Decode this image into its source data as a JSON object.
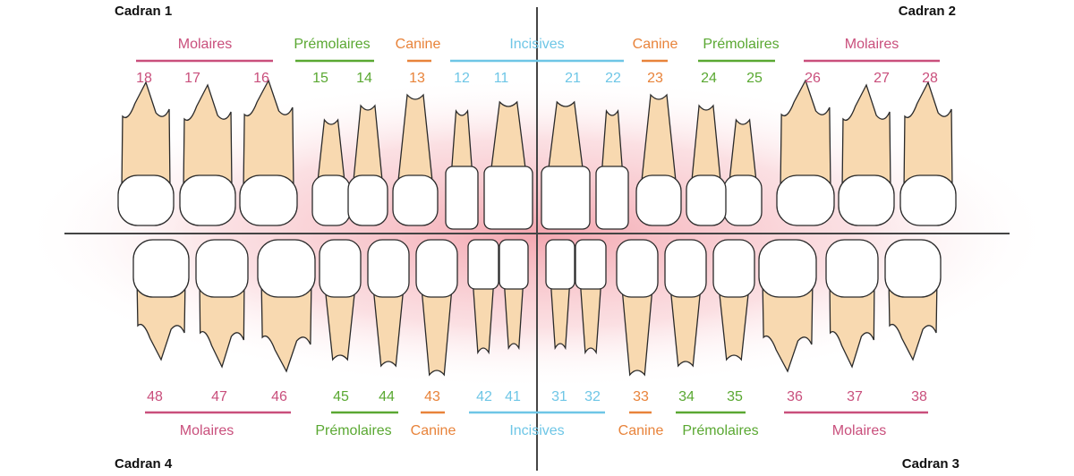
{
  "quadrants": {
    "q1": "Cadran 1",
    "q2": "Cadran 2",
    "q3": "Cadran 3",
    "q4": "Cadran 4"
  },
  "upper_jaw": {
    "groups": [
      {
        "label": "Molaires",
        "color": "#c94f7c",
        "numbers": [
          "18",
          "17",
          "16"
        ]
      },
      {
        "label": "Prémolaires",
        "color": "#5aa832",
        "numbers": [
          "15",
          "14"
        ]
      },
      {
        "label": "Canine",
        "color": "#e8833a",
        "numbers": [
          "13"
        ]
      },
      {
        "label": "Incisives",
        "color": "#6ec6e6",
        "numbers": [
          "12",
          "11",
          "21",
          "22"
        ]
      },
      {
        "label": "Canine",
        "color": "#e8833a",
        "numbers": [
          "23"
        ]
      },
      {
        "label": "Prémolaires",
        "color": "#5aa832",
        "numbers": [
          "24",
          "25"
        ]
      },
      {
        "label": "Molaires",
        "color": "#c94f7c",
        "numbers": [
          "26",
          "27",
          "28"
        ]
      }
    ]
  },
  "lower_jaw": {
    "groups": [
      {
        "label": "Molaires",
        "color": "#c94f7c",
        "numbers": [
          "48",
          "47",
          "46"
        ]
      },
      {
        "label": "Prémolaires",
        "color": "#5aa832",
        "numbers": [
          "45",
          "44"
        ]
      },
      {
        "label": "Canine",
        "color": "#e8833a",
        "numbers": [
          "43"
        ]
      },
      {
        "label": "Incisives",
        "color": "#6ec6e6",
        "numbers": [
          "42",
          "41",
          "31",
          "32"
        ]
      },
      {
        "label": "Canine",
        "color": "#e8833a",
        "numbers": [
          "33"
        ]
      },
      {
        "label": "Prémolaires",
        "color": "#5aa832",
        "numbers": [
          "34",
          "35"
        ]
      },
      {
        "label": "Molaires",
        "color": "#c94f7c",
        "numbers": [
          "36",
          "37",
          "38"
        ]
      }
    ]
  }
}
